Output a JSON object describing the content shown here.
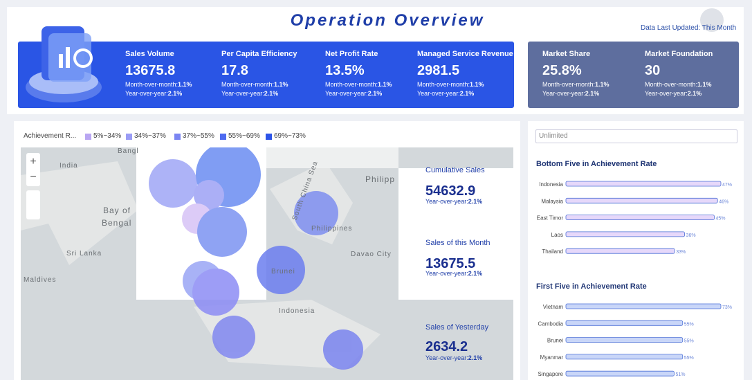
{
  "header": {
    "title": "Operation Overview",
    "updated": "Data Last Updated: This Month"
  },
  "kpis": [
    {
      "label": "Sales Volume",
      "value": "13675.8",
      "mom_label": "Month-over-month:",
      "mom": "1.1%",
      "yoy_label": "Year-over-year:",
      "yoy": "2.1%"
    },
    {
      "label": "Per Capita Efficiency",
      "value": "17.8",
      "mom_label": "Month-over-month:",
      "mom": "1.1%",
      "yoy_label": "Year-over-year:",
      "yoy": "2.1%"
    },
    {
      "label": "Net Profit Rate",
      "value": "13.5%",
      "mom_label": "Month-over-month:",
      "mom": "1.1%",
      "yoy_label": "Year-over-year:",
      "yoy": "2.1%"
    },
    {
      "label": "Managed Service Revenue",
      "value": "2981.5",
      "mom_label": "Month-over-month:",
      "mom": "1.1%",
      "yoy_label": "Year-over-year:",
      "yoy": "2.1%"
    }
  ],
  "kpis_right": [
    {
      "label": "Market Share",
      "value": "25.8%",
      "mom_label": "Month-over-month:",
      "mom": "1.1%",
      "yoy_label": "Year-over-year:",
      "yoy": "2.1%"
    },
    {
      "label": "Market Foundation",
      "value": "30",
      "mom_label": "Month-over-month:",
      "mom": "1.1%",
      "yoy_label": "Year-over-year:",
      "yoy": "2.1%"
    }
  ],
  "map": {
    "legend_title": "Achievement R...",
    "legend": [
      {
        "label": "5%~34%",
        "color": "#b9a6f2"
      },
      {
        "label": "34%~37%",
        "color": "#9a9cf5"
      },
      {
        "label": "37%~55%",
        "color": "#7b85f2"
      },
      {
        "label": "55%~69%",
        "color": "#4d6af0"
      },
      {
        "label": "69%~73%",
        "color": "#2d54e8"
      }
    ],
    "labels": [
      "Bangl",
      "India",
      "Bay of",
      "Bengal",
      "Sri Lanka",
      "Maldives",
      "Philipp",
      "Philippines",
      "South China Sea",
      "Davao City",
      "Brunei",
      "Indonesia"
    ]
  },
  "summary": [
    {
      "label": "Cumulative Sales",
      "value": "54632.9",
      "yoy_label": "Year-over-year:",
      "yoy": "2.1%"
    },
    {
      "label": "Sales of this Month",
      "value": "13675.5",
      "yoy_label": "Year-over-year:",
      "yoy": "2.1%"
    },
    {
      "label": "Sales of Yesterday",
      "value": "2634.2",
      "yoy_label": "Year-over-year:",
      "yoy": "2.1%"
    }
  ],
  "filter": "Unlimited",
  "chart_data": [
    {
      "type": "bar",
      "orientation": "horizontal",
      "title": "Bottom Five in Achievement Rate",
      "categories": [
        "Indonesia",
        "Malaysia",
        "East Timor",
        "Laos",
        "Thailand"
      ],
      "values": [
        47,
        46,
        45,
        36,
        33
      ],
      "value_labels": [
        "47%",
        "46%",
        "45%",
        "36%",
        "33%"
      ],
      "color": "#e6d8fa",
      "xlim": [
        0,
        47
      ]
    },
    {
      "type": "bar",
      "orientation": "horizontal",
      "title": "First Five in Achievement Rate",
      "categories": [
        "Vietnam",
        "Cambodia",
        "Brunei",
        "Myanmar",
        "Singapore"
      ],
      "values": [
        73,
        55,
        55,
        55,
        51
      ],
      "value_labels": [
        "73%",
        "55%",
        "55%",
        "55%",
        "51%"
      ],
      "color": "#c9d6f8",
      "xlim": [
        0,
        73
      ]
    }
  ]
}
